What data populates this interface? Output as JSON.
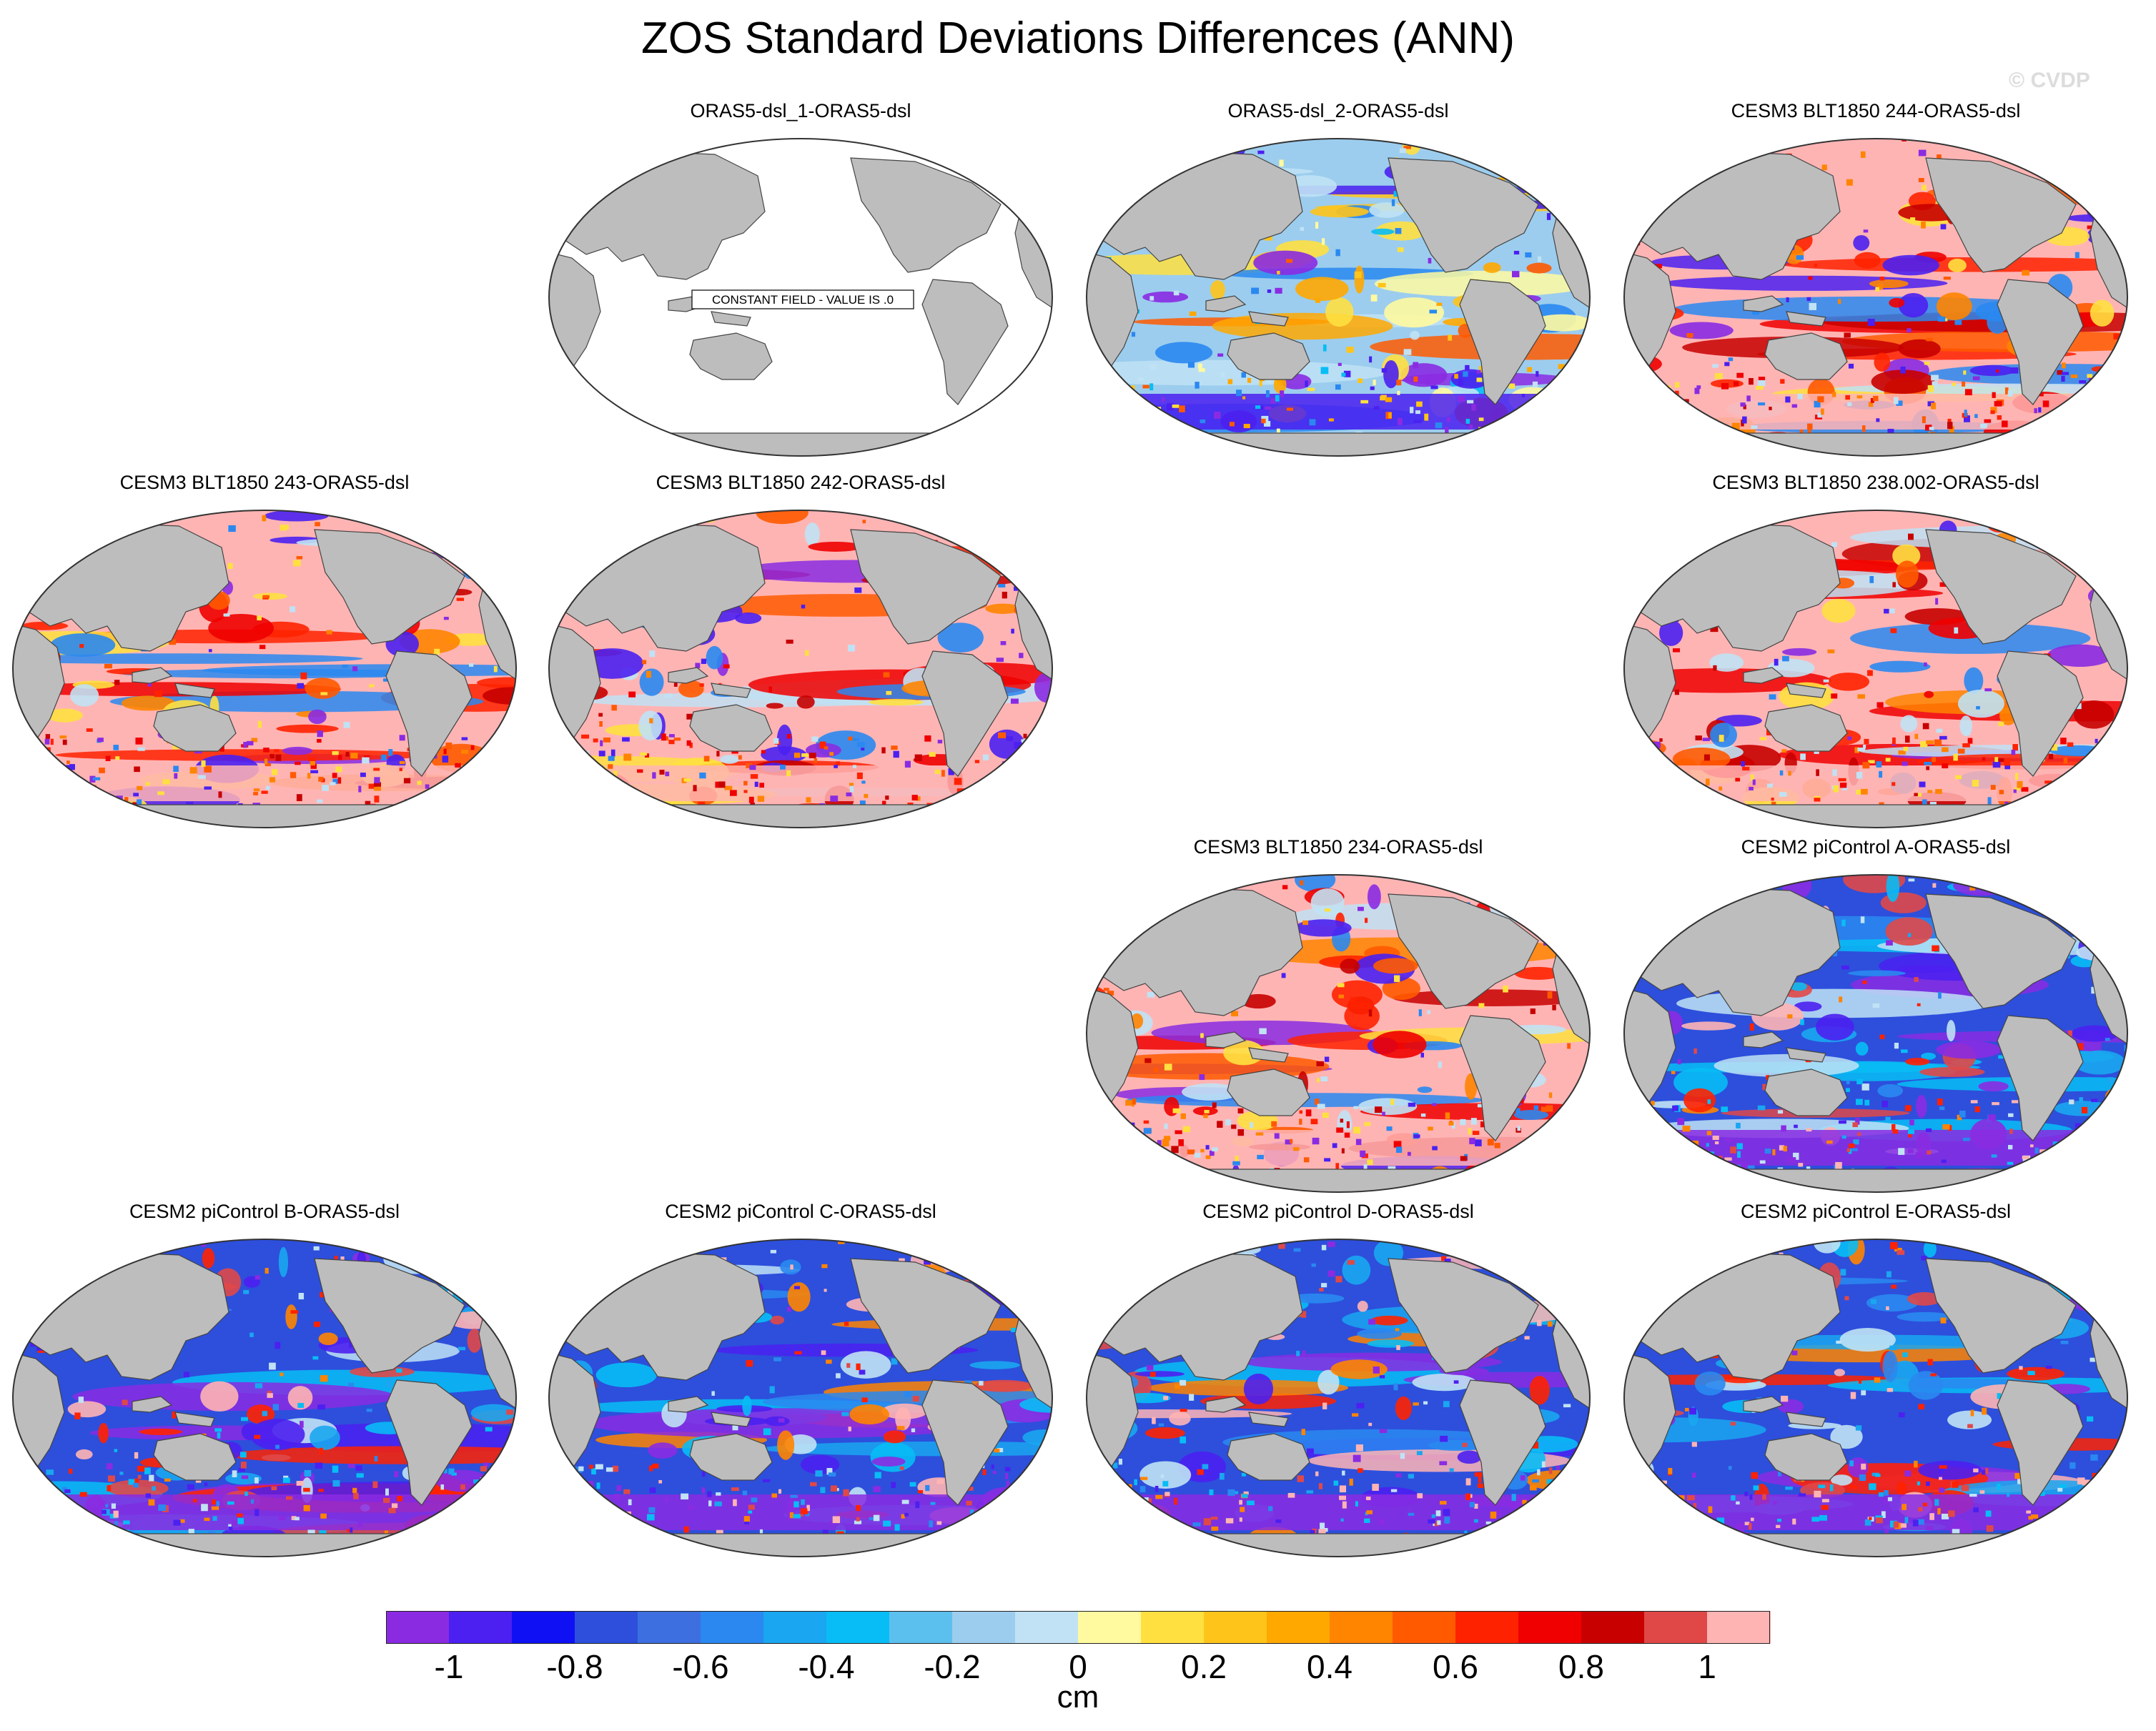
{
  "title": "ZOS Standard Deviations Differences (ANN)",
  "credit": "© CVDP",
  "colorbar": {
    "unit": "cm",
    "ticks": [
      "-1",
      "-0.8",
      "-0.6",
      "-0.4",
      "-0.2",
      "0",
      "0.2",
      "0.4",
      "0.6",
      "0.8",
      "1"
    ],
    "colors": [
      "#8a2be2",
      "#4b20f0",
      "#1010f5",
      "#2d4fdc",
      "#3e6fe0",
      "#2a88f0",
      "#1aa6f0",
      "#08bdf5",
      "#5cc0ee",
      "#9ccdee",
      "#c0e2f4",
      "#fffaa0",
      "#ffe040",
      "#ffc41a",
      "#ffa800",
      "#ff8400",
      "#ff5a00",
      "#ff2200",
      "#f00000",
      "#c80000",
      "#e04848",
      "#ffb4b4"
    ]
  },
  "panels": [
    {
      "title": "ORAS5-dsl_1-ORAS5-dsl",
      "row": 0,
      "col": 1,
      "style": "constant",
      "note": "CONSTANT FIELD - VALUE IS .0"
    },
    {
      "title": "ORAS5-dsl_2-ORAS5-dsl",
      "row": 0,
      "col": 2,
      "style": "mixed"
    },
    {
      "title": "CESM3 BLT1850 244-ORAS5-dsl",
      "row": 0,
      "col": 3,
      "style": "warm"
    },
    {
      "title": "CESM3 BLT1850 243-ORAS5-dsl",
      "row": 1,
      "col": 0,
      "style": "warm"
    },
    {
      "title": "CESM3 BLT1850 242-ORAS5-dsl",
      "row": 1,
      "col": 1,
      "style": "warm"
    },
    {
      "title": "CESM3 BLT1850 238.002-ORAS5-dsl",
      "row": 1,
      "col": 3,
      "style": "warm"
    },
    {
      "title": "CESM3 BLT1850 234-ORAS5-dsl",
      "row": 2,
      "col": 2,
      "style": "warm"
    },
    {
      "title": "CESM2 piControl A-ORAS5-dsl",
      "row": 2,
      "col": 3,
      "style": "cool"
    },
    {
      "title": "CESM2 piControl B-ORAS5-dsl",
      "row": 3,
      "col": 0,
      "style": "cool"
    },
    {
      "title": "CESM2 piControl C-ORAS5-dsl",
      "row": 3,
      "col": 1,
      "style": "cool"
    },
    {
      "title": "CESM2 piControl D-ORAS5-dsl",
      "row": 3,
      "col": 2,
      "style": "cool"
    },
    {
      "title": "CESM2 piControl E-ORAS5-dsl",
      "row": 3,
      "col": 3,
      "style": "cool"
    }
  ]
}
